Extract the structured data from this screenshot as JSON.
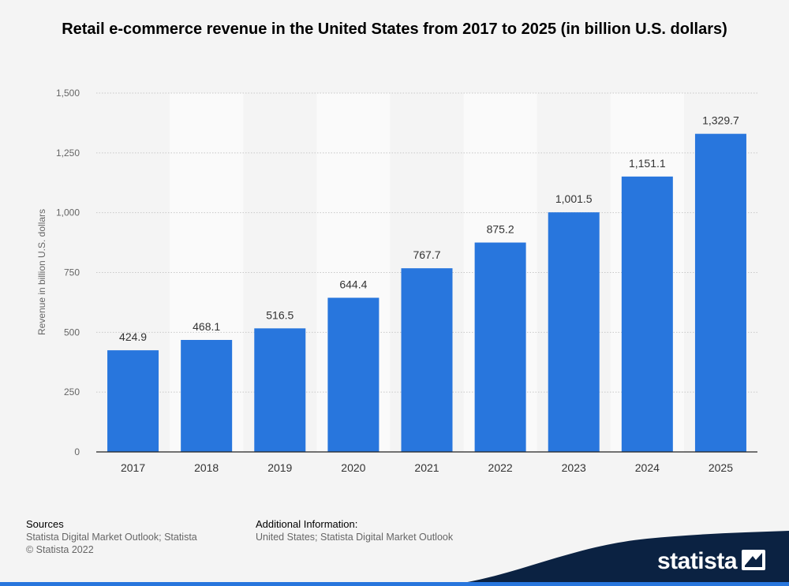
{
  "chart_data": {
    "type": "bar",
    "title": "Retail e-commerce revenue in the United States from 2017 to 2025 (in billion U.S. dollars)",
    "xlabel": "",
    "ylabel": "Revenue in billion U.S. dollars",
    "categories": [
      "2017",
      "2018",
      "2019",
      "2020",
      "2021",
      "2022",
      "2023",
      "2024",
      "2025"
    ],
    "values": [
      424.9,
      468.1,
      516.5,
      644.4,
      767.7,
      875.2,
      1001.5,
      1151.1,
      1329.7
    ],
    "value_labels": [
      "424.9",
      "468.1",
      "516.5",
      "644.4",
      "767.7",
      "875.2",
      "1,001.5",
      "1,151.1",
      "1,329.7"
    ],
    "ylim": [
      0,
      1500
    ],
    "yticks": [
      0,
      250,
      500,
      750,
      1000,
      1250,
      1500
    ],
    "ytick_labels": [
      "0",
      "250",
      "500",
      "750",
      "1,000",
      "1,250",
      "1,500"
    ],
    "grid": true,
    "bar_color": "#2876dd"
  },
  "footer": {
    "sources_heading": "Sources",
    "sources_line1": "Statista Digital Market Outlook; Statista",
    "sources_line2": "© Statista 2022",
    "additional_heading": "Additional Information:",
    "additional_text": "United States; Statista Digital Market Outlook"
  },
  "brand": {
    "name": "statista",
    "logo_icon": "statista-flag-icon",
    "band_color": "#0b2242",
    "accent_color": "#2876dd"
  }
}
